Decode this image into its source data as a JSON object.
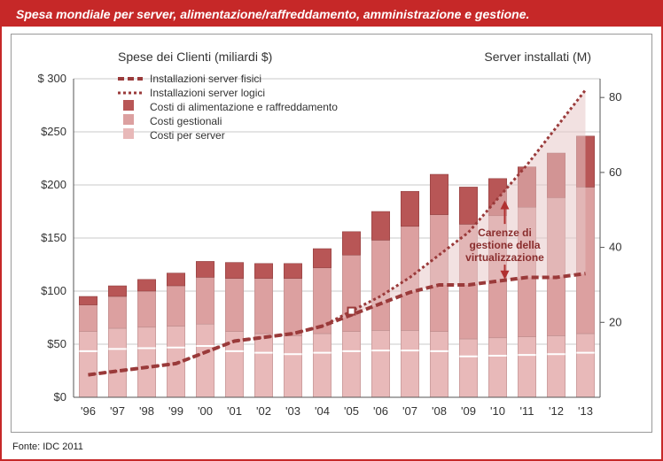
{
  "title": "Spesa mondiale per server, alimentazione/raffreddamento, amministrazione e gestione.",
  "source": "Fonte: IDC 2011",
  "left_axis_title": "Spese dei Clienti (miliardi $)",
  "right_axis_title": "Server installati (M)",
  "legend": {
    "physical": "Installazioni server fisici",
    "logical": "Installazioni server logici",
    "power": "Costi di alimentazione e raffreddamento",
    "mgmt": "Costi gestionali",
    "server": "Costi per server"
  },
  "annotation": {
    "line1": "Carenze di",
    "line2": "gestione della",
    "line3": "virtualizzazione"
  },
  "chart": {
    "type": "stacked-bar-dual-axis",
    "background_color": "#ffffff",
    "grid_color": "#c9c9c9",
    "text_color": "#333333",
    "colors": {
      "server": "#e8b9b9",
      "mgmt": "#dca0a0",
      "power": "#b85656",
      "line_physical": "#9a3a3a",
      "line_logical": "#9a3a3a",
      "area_fill": "#e7c9c9",
      "annot_arrow": "#b03030"
    },
    "categories": [
      "'96",
      "'97",
      "'98",
      "'99",
      "'00",
      "'01",
      "'02",
      "'03",
      "'04",
      "'05",
      "'06",
      "'07",
      "'08",
      "'09",
      "'10",
      "'11",
      "'12",
      "'13"
    ],
    "left_axis": {
      "min": 0,
      "max": 300,
      "step": 50,
      "prefix": "$",
      "suffix": ""
    },
    "right_axis": {
      "min": 0,
      "max": 85,
      "ticks": [
        20,
        40,
        60,
        80
      ]
    },
    "bar_width": 0.62,
    "stacks": {
      "server": [
        62,
        65,
        66,
        67,
        69,
        62,
        60,
        58,
        60,
        62,
        63,
        63,
        62,
        55,
        56,
        57,
        58,
        60
      ],
      "mgmt": [
        25,
        30,
        34,
        38,
        44,
        50,
        52,
        54,
        62,
        72,
        85,
        98,
        110,
        108,
        115,
        122,
        130,
        138
      ],
      "power": [
        8,
        10,
        11,
        12,
        15,
        15,
        14,
        14,
        18,
        22,
        27,
        33,
        38,
        35,
        35,
        38,
        42,
        48
      ]
    },
    "lines": {
      "physical": [
        6,
        7,
        8,
        9,
        12,
        15,
        16,
        17,
        19,
        22,
        25,
        28,
        30,
        30,
        31,
        32,
        32,
        33
      ],
      "logical": [
        6,
        7,
        8,
        9,
        12,
        15,
        16,
        17,
        19,
        23,
        27,
        32,
        38,
        44,
        53,
        62,
        72,
        82
      ]
    },
    "title_fontsize": 14,
    "axis_title_fontsize": 14,
    "tick_fontsize": 13,
    "legend_fontsize": 12
  }
}
